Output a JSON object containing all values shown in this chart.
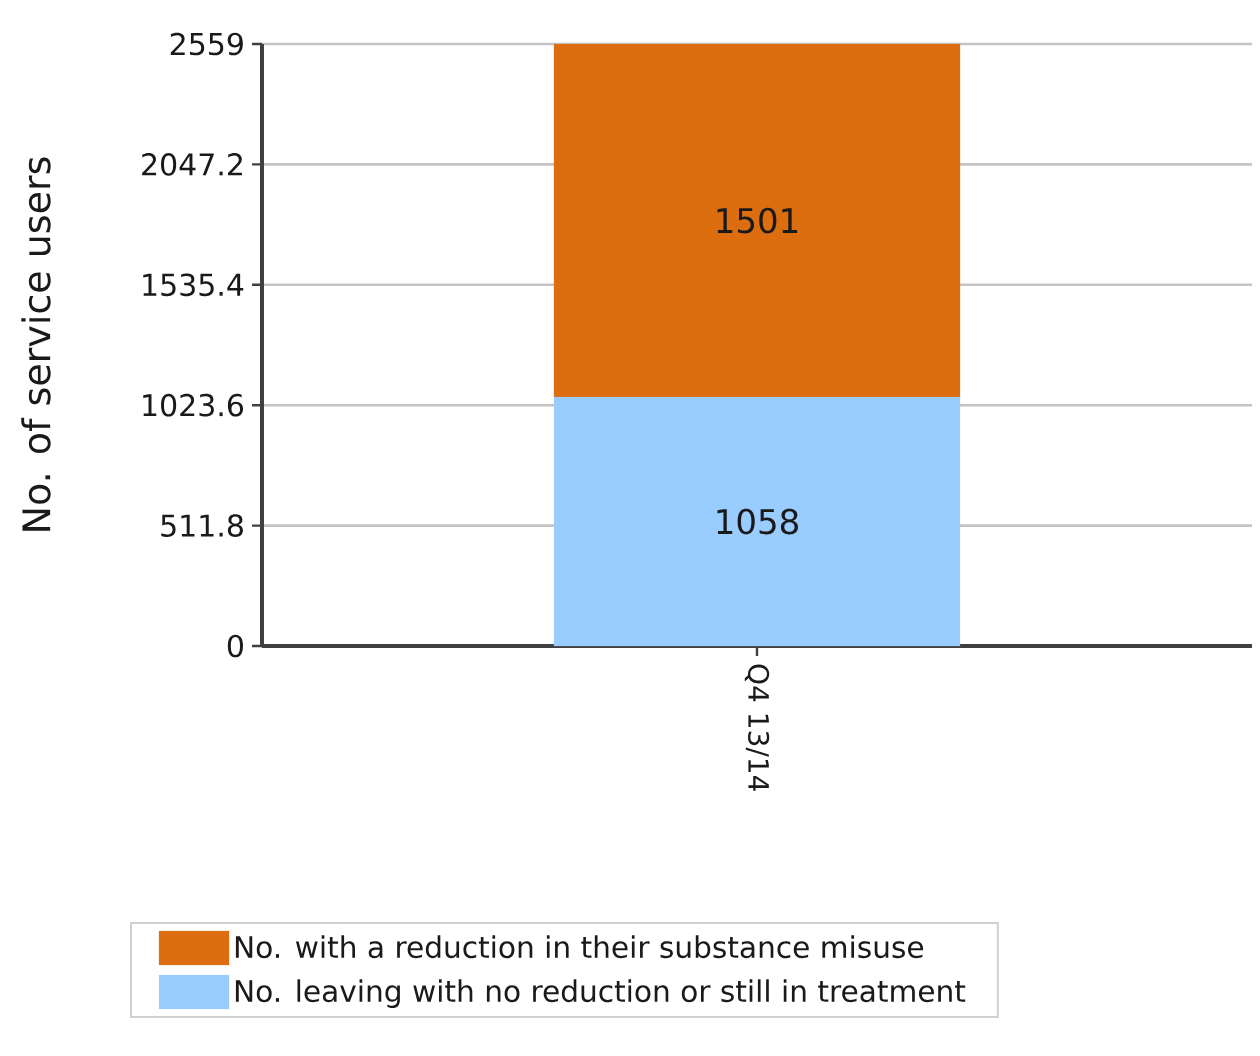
{
  "chart_data": {
    "type": "bar",
    "stacked": true,
    "ylabel": "No. of service users",
    "categories": [
      "Q4 13/14"
    ],
    "series": [
      {
        "name": "No. leaving with no reduction or still in treatment",
        "color": "#99ccff",
        "values": [
          1058
        ]
      },
      {
        "name": "No. with a reduction in their substance misuse",
        "color": "#dc6e0f",
        "values": [
          1501
        ]
      }
    ],
    "ylim": [
      0,
      2559
    ],
    "yticks": [
      0,
      511.8,
      1023.6,
      1535.4,
      2047.2,
      2559
    ],
    "grid": "y",
    "legend": "bottom",
    "data_labels": true
  }
}
